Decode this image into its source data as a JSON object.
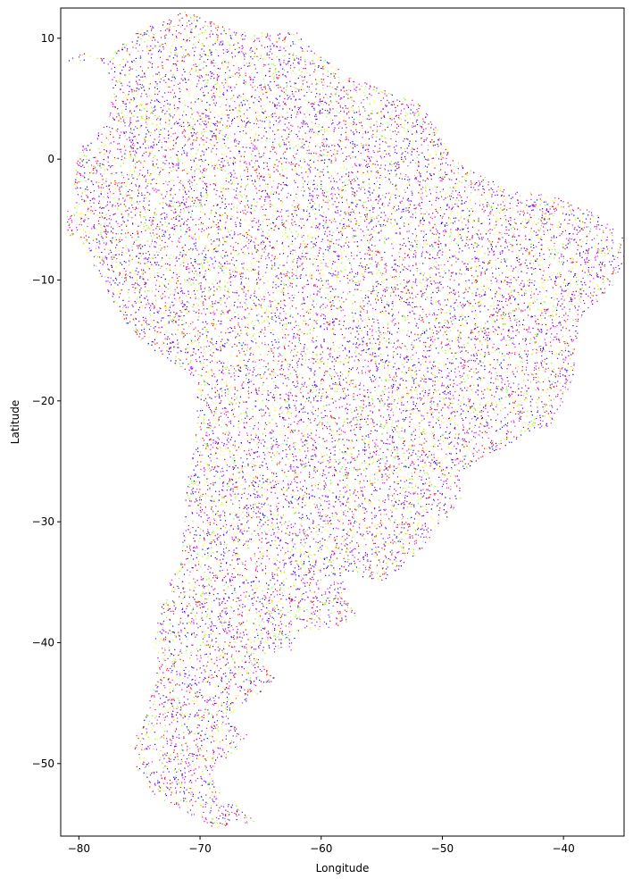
{
  "chart_data": {
    "type": "scatter",
    "title": "",
    "xlabel": "Longitude",
    "ylabel": "Latitude",
    "xlim": [
      -81.5,
      -35
    ],
    "ylim": [
      -56,
      12.5
    ],
    "xticks": [
      -80,
      -70,
      -60,
      -50,
      -40
    ],
    "yticks": [
      10,
      0,
      -10,
      -20,
      -30,
      -40,
      -50
    ],
    "xtick_labels": [
      "−80",
      "−70",
      "−60",
      "−50",
      "−40"
    ],
    "ytick_labels": [
      "10",
      "0",
      "−10",
      "−20",
      "−30",
      "−40",
      "−50"
    ],
    "grid": false,
    "legend": "none",
    "colors": [
      "#ff0000",
      "#ffff00",
      "#7fff00",
      "#0000ff",
      "#8000ff",
      "#ff00ff"
    ],
    "marker": "dot",
    "n_points": 17000,
    "coastline": [
      [
        -77.5,
        8.5
      ],
      [
        -75.5,
        10.5
      ],
      [
        -73,
        11.5
      ],
      [
        -71.5,
        12.3
      ],
      [
        -70,
        11.8
      ],
      [
        -67,
        10.6
      ],
      [
        -64,
        10.5
      ],
      [
        -62,
        10.5
      ],
      [
        -60,
        8.5
      ],
      [
        -58,
        7
      ],
      [
        -55,
        5.8
      ],
      [
        -52,
        4.8
      ],
      [
        -51,
        3.5
      ],
      [
        -50,
        1.5
      ],
      [
        -49,
        0
      ],
      [
        -47.5,
        -0.8
      ],
      [
        -44.5,
        -2.5
      ],
      [
        -41,
        -3
      ],
      [
        -38.5,
        -3.8
      ],
      [
        -36.5,
        -5
      ],
      [
        -35.1,
        -6.5
      ],
      [
        -34.9,
        -8
      ],
      [
        -35.5,
        -9.8
      ],
      [
        -37,
        -11.5
      ],
      [
        -38.5,
        -13
      ],
      [
        -39,
        -15
      ],
      [
        -39.2,
        -17.8
      ],
      [
        -40,
        -20
      ],
      [
        -41,
        -22
      ],
      [
        -43.5,
        -23
      ],
      [
        -45,
        -23.8
      ],
      [
        -47,
        -24.8
      ],
      [
        -48.5,
        -26
      ],
      [
        -48.5,
        -28.2
      ],
      [
        -50,
        -30
      ],
      [
        -52,
        -32.5
      ],
      [
        -53.5,
        -34
      ],
      [
        -55,
        -34.9
      ],
      [
        -57,
        -34.5
      ],
      [
        -58.5,
        -34
      ],
      [
        -57.8,
        -36.5
      ],
      [
        -57,
        -38
      ],
      [
        -59,
        -38.8
      ],
      [
        -62.2,
        -39
      ],
      [
        -62.3,
        -40.6
      ],
      [
        -65,
        -41
      ],
      [
        -64.5,
        -42.3
      ],
      [
        -63.8,
        -42.8
      ],
      [
        -65,
        -44
      ],
      [
        -66.5,
        -45
      ],
      [
        -67.5,
        -46.5
      ],
      [
        -65.8,
        -47.8
      ],
      [
        -67.8,
        -49.5
      ],
      [
        -69,
        -50.5
      ],
      [
        -68.5,
        -52.3
      ],
      [
        -66,
        -54
      ],
      [
        -65,
        -55
      ],
      [
        -67,
        -55
      ],
      [
        -68.5,
        -55.4
      ],
      [
        -70.5,
        -54.5
      ],
      [
        -72,
        -53.5
      ],
      [
        -74,
        -52.5
      ],
      [
        -75.3,
        -50.5
      ],
      [
        -75.6,
        -48
      ],
      [
        -74.5,
        -46
      ],
      [
        -74,
        -44
      ],
      [
        -73.5,
        -42
      ],
      [
        -73.8,
        -40
      ],
      [
        -73.4,
        -37.5
      ],
      [
        -72.5,
        -35
      ],
      [
        -71.6,
        -32.5
      ],
      [
        -71.4,
        -30
      ],
      [
        -71.2,
        -27
      ],
      [
        -70.5,
        -23.5
      ],
      [
        -70.2,
        -20
      ],
      [
        -70.5,
        -18.3
      ],
      [
        -72,
        -17
      ],
      [
        -75,
        -15
      ],
      [
        -76.5,
        -13
      ],
      [
        -78,
        -10.5
      ],
      [
        -79.5,
        -7.5
      ],
      [
        -81.2,
        -6
      ],
      [
        -81,
        -4.2
      ],
      [
        -80.1,
        -3.3
      ],
      [
        -80.6,
        -1.5
      ],
      [
        -80,
        1
      ],
      [
        -78.8,
        1.6
      ],
      [
        -77.4,
        4
      ],
      [
        -77.3,
        6.6
      ],
      [
        -78.3,
        8.2
      ],
      [
        -79.7,
        8.8
      ],
      [
        -81.5,
        8
      ]
    ]
  }
}
